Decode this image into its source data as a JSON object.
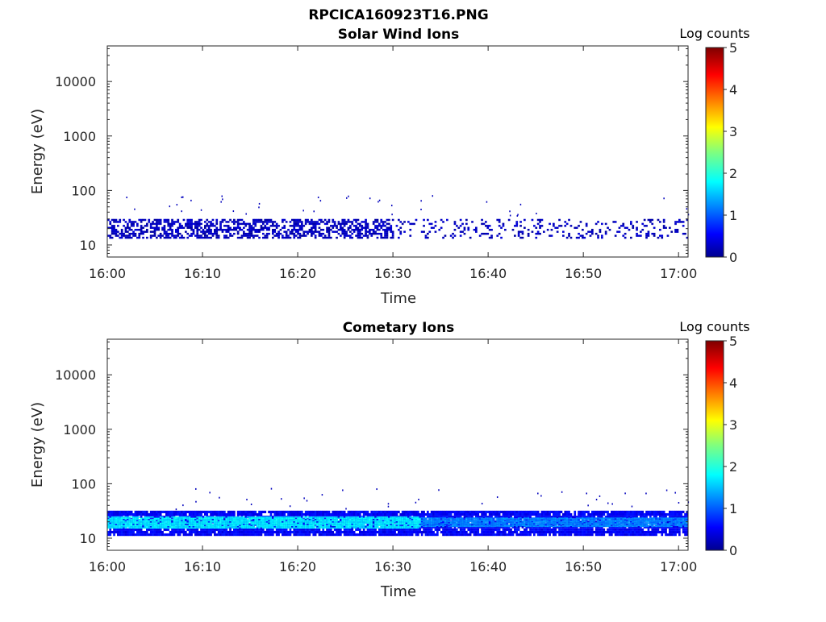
{
  "figure_title": "RPCICA160923T16.PNG",
  "chart_data": [
    {
      "type": "heatmap",
      "title": "Solar Wind Ions",
      "xlabel": "Time",
      "ylabel": "Energy (eV)",
      "x_ticks": [
        "16:00",
        "16:10",
        "16:20",
        "16:30",
        "16:40",
        "16:50",
        "17:00"
      ],
      "xlim": [
        "16:00",
        "17:01"
      ],
      "y_scale": "log",
      "y_ticks": [
        10,
        100,
        1000,
        10000
      ],
      "y_tick_labels": [
        "10",
        "100",
        "1000",
        "10000"
      ],
      "ylim": [
        6,
        45000
      ],
      "colorbar": {
        "label": "Log counts",
        "range": [
          0,
          5
        ],
        "ticks": [
          "0",
          "1",
          "2",
          "3",
          "4",
          "5"
        ],
        "colormap": "jet"
      },
      "description_bands": [
        {
          "energy_range_eV": [
            13,
            30
          ],
          "log_counts_typical": 0.3,
          "time_range": [
            "16:00",
            "17:01"
          ],
          "density": "dense until ~16:30, sparse afterwards"
        }
      ],
      "grid": false
    },
    {
      "type": "heatmap",
      "title": "Cometary Ions",
      "xlabel": "Time",
      "ylabel": "Energy (eV)",
      "x_ticks": [
        "16:00",
        "16:10",
        "16:20",
        "16:30",
        "16:40",
        "16:50",
        "17:00"
      ],
      "xlim": [
        "16:00",
        "17:01"
      ],
      "y_scale": "log",
      "y_ticks": [
        10,
        100,
        1000,
        10000
      ],
      "y_tick_labels": [
        "10",
        "100",
        "1000",
        "10000"
      ],
      "ylim": [
        6,
        45000
      ],
      "colorbar": {
        "label": "Log counts",
        "range": [
          0,
          5
        ],
        "ticks": [
          "0",
          "1",
          "2",
          "3",
          "4",
          "5"
        ],
        "colormap": "jet"
      },
      "description_bands": [
        {
          "energy_range_eV": [
            11,
            32
          ],
          "log_counts_typical": 0.6,
          "time_range": [
            "16:00",
            "17:01"
          ]
        },
        {
          "energy_range_eV": [
            15,
            25
          ],
          "log_counts_typical": 1.8,
          "time_range": [
            "16:00",
            "16:33"
          ]
        },
        {
          "energy_range_eV": [
            16,
            24
          ],
          "log_counts_typical": 1.3,
          "time_range": [
            "16:33",
            "17:01"
          ]
        }
      ],
      "grid": false
    }
  ]
}
